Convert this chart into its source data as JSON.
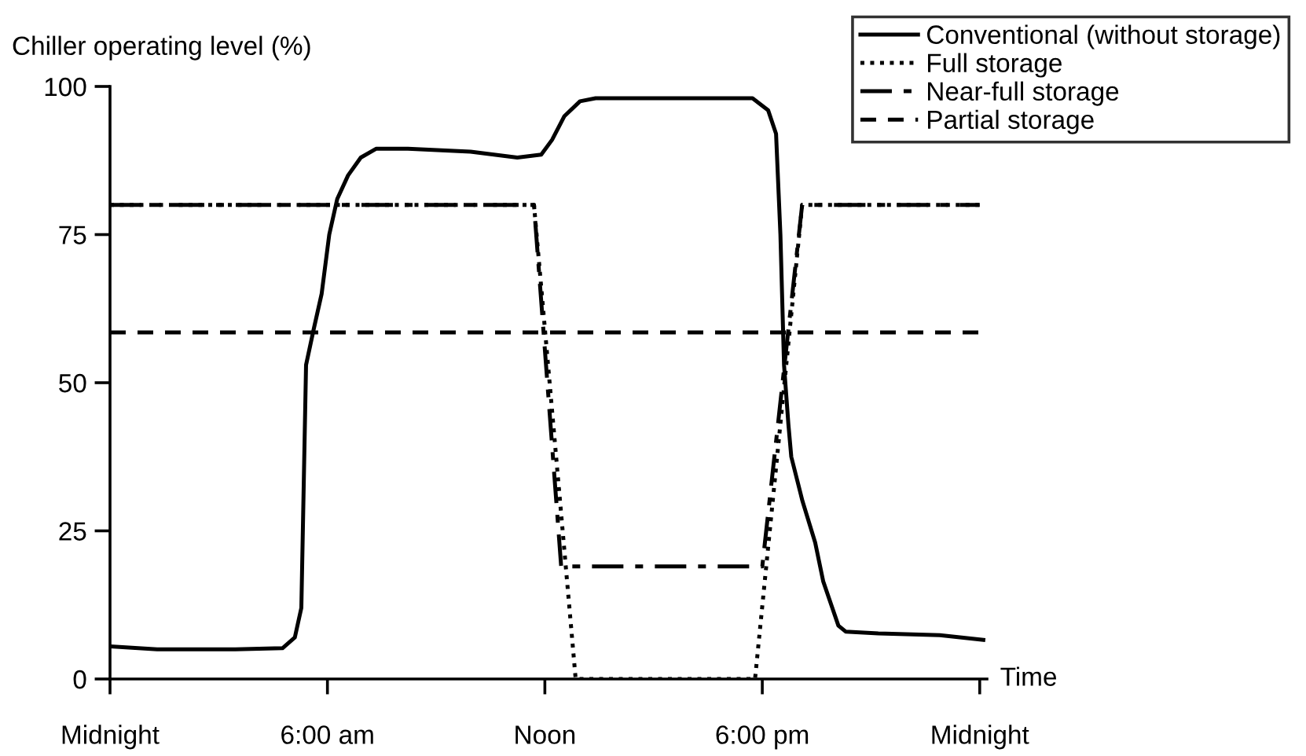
{
  "chart_data": {
    "type": "line",
    "ylabel": "Chiller operating level (%)",
    "xlabel": "Time",
    "xlim": [
      0,
      24.2
    ],
    "xticks": [
      {
        "value": 0,
        "label": "Midnight"
      },
      {
        "value": 6,
        "label": "6:00 am"
      },
      {
        "value": 12,
        "label": "Noon"
      },
      {
        "value": 18,
        "label": "6:00 pm"
      },
      {
        "value": 24,
        "label": "Midnight"
      }
    ],
    "ylim": [
      0,
      100
    ],
    "yticks": [
      0,
      25,
      50,
      75,
      100
    ],
    "grid": false,
    "legend": "top right",
    "marker": "none",
    "series": [
      {
        "name": "Conventional (without storage)",
        "color": "#000000",
        "line_style": "solid",
        "x": [
          0,
          1.3,
          3.46,
          4.76,
          5.1,
          5.28,
          5.41,
          5.62,
          5.84,
          6.05,
          6.27,
          6.57,
          6.92,
          7.35,
          8.22,
          9.95,
          11.24,
          11.9,
          12.2,
          12.54,
          12.97,
          13.4,
          17.73,
          18.16,
          18.38,
          18.5,
          18.6,
          18.72,
          18.8,
          19.11,
          19.46,
          19.68,
          20.1,
          20.3,
          21.2,
          22.9,
          24.1
        ],
        "values": [
          5.5,
          5,
          5,
          5.2,
          7,
          12,
          53,
          59,
          65,
          75,
          81,
          85,
          88,
          89.5,
          89.5,
          89,
          88,
          88.5,
          91,
          95,
          97.5,
          98,
          98,
          96,
          92,
          75,
          53,
          43,
          37.5,
          30,
          23,
          16.5,
          9,
          8,
          7.7,
          7.4,
          6.6
        ]
      },
      {
        "name": "Full storage",
        "color": "#000000",
        "line_style": "dotted",
        "x": [
          0,
          11.7,
          12.85,
          17.8,
          19.1,
          24
        ],
        "values": [
          80,
          80,
          0,
          0,
          80,
          80
        ]
      },
      {
        "name": "Near-full storage",
        "color": "#000000",
        "line_style": "dashdot",
        "x": [
          0,
          11.7,
          12.45,
          18.0,
          19.1,
          24
        ],
        "values": [
          80,
          80,
          19,
          19,
          80,
          80
        ]
      },
      {
        "name": "Partial storage",
        "color": "#000000",
        "line_style": "dashed",
        "x": [
          0,
          24
        ],
        "values": [
          58.5,
          58.5
        ]
      }
    ]
  }
}
